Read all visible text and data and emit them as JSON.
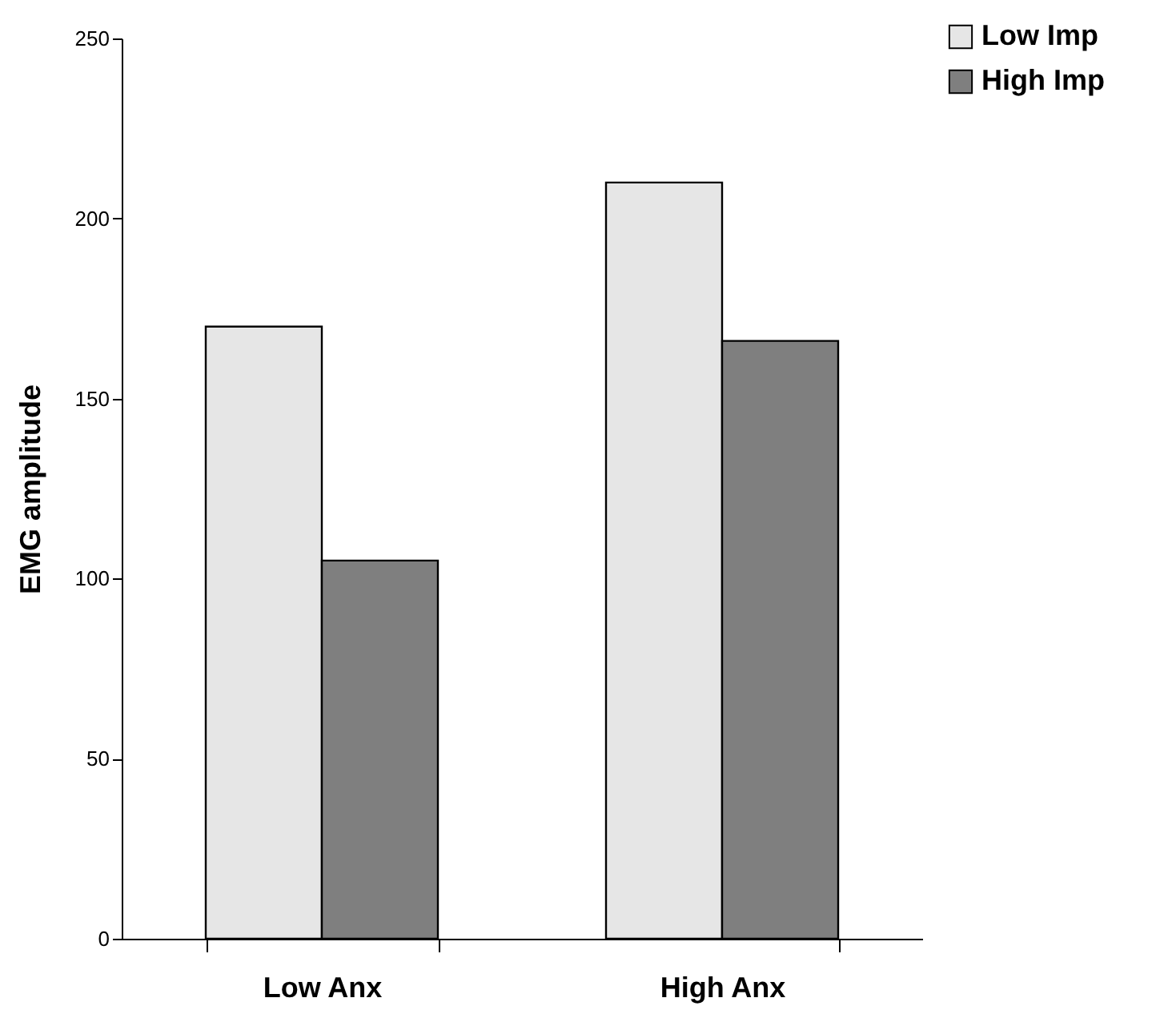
{
  "chart_data": {
    "type": "bar",
    "ylabel": "EMG amplitude",
    "categories": [
      "Low Anx",
      "High Anx"
    ],
    "series": [
      {
        "name": "Low Imp",
        "color": "#e6e6e6",
        "values": [
          170,
          210
        ]
      },
      {
        "name": "High Imp",
        "color": "#7f7f7f",
        "values": [
          105,
          166
        ]
      }
    ],
    "ylim": [
      0,
      250
    ],
    "yticks": [
      0,
      50,
      100,
      150,
      200,
      250
    ],
    "grid": false,
    "legend": "top right"
  }
}
